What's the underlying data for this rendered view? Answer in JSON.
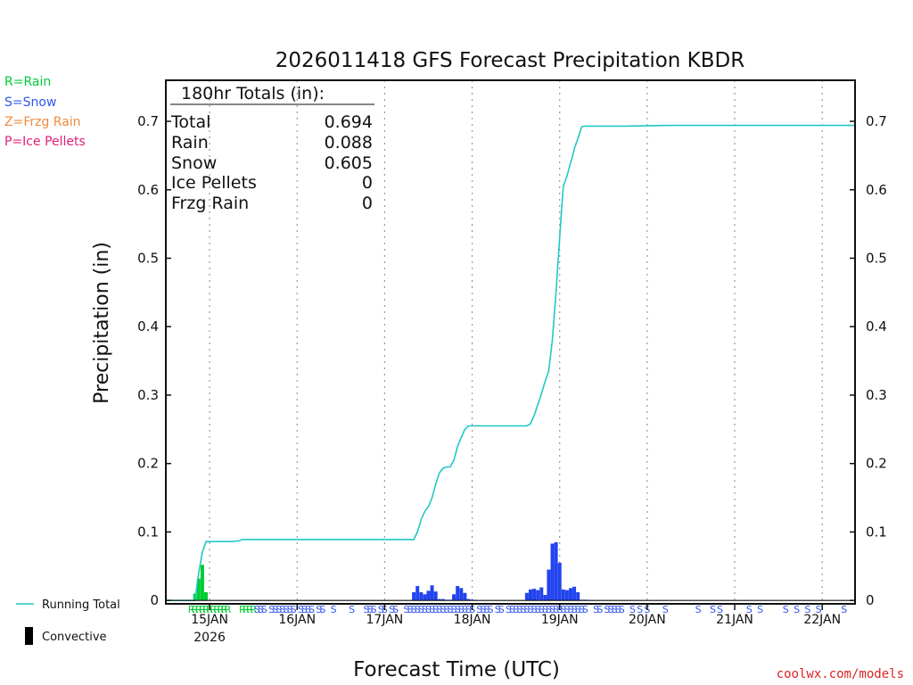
{
  "chart_data": {
    "type": "bar+line",
    "title": "2026011418 GFS Forecast Precipitation KBDR",
    "xlabel": "Forecast Time (UTC)",
    "ylabel": "Precipitation (in)",
    "ylim": [
      -0.005,
      0.76
    ],
    "xlim_hours": [
      -6,
      183
    ],
    "yticks": [
      0,
      0.1,
      0.2,
      0.3,
      0.4,
      0.5,
      0.6,
      0.7
    ],
    "ytick_labels": [
      "0",
      "0.1",
      "0.2",
      "0.3",
      "0.4",
      "0.5",
      "0.6",
      "0.7"
    ],
    "xticks": [
      {
        "hour": 6,
        "label": "15JAN",
        "sublabel": "2026"
      },
      {
        "hour": 30,
        "label": "16JAN"
      },
      {
        "hour": 54,
        "label": "17JAN"
      },
      {
        "hour": 78,
        "label": "18JAN"
      },
      {
        "hour": 102,
        "label": "19JAN"
      },
      {
        "hour": 126,
        "label": "20JAN"
      },
      {
        "hour": 150,
        "label": "21JAN"
      },
      {
        "hour": 174,
        "label": "22JAN"
      }
    ],
    "running_total": {
      "name": "Running Total",
      "color": "#20c8c8",
      "hours": [
        -6,
        0,
        2,
        3,
        4,
        5,
        12,
        14,
        15,
        16,
        17,
        18,
        62,
        63,
        64,
        65,
        66,
        67,
        67.5,
        68,
        69,
        70,
        71,
        72,
        73,
        74,
        75,
        76,
        77,
        78,
        79,
        93,
        94,
        95,
        96,
        97,
        98,
        99,
        100,
        101,
        102,
        102.5,
        103,
        104,
        105,
        105.5,
        106,
        107,
        108,
        109,
        110,
        120,
        132,
        140,
        170,
        183
      ],
      "values": [
        0,
        0,
        0,
        0.04,
        0.07,
        0.086,
        0.086,
        0.087,
        0.089,
        0.089,
        0.089,
        0.089,
        0.089,
        0.1,
        0.118,
        0.13,
        0.137,
        0.15,
        0.16,
        0.17,
        0.186,
        0.193,
        0.195,
        0.195,
        0.205,
        0.225,
        0.238,
        0.25,
        0.255,
        0.255,
        0.255,
        0.255,
        0.258,
        0.27,
        0.286,
        0.302,
        0.32,
        0.335,
        0.38,
        0.45,
        0.53,
        0.57,
        0.605,
        0.62,
        0.64,
        0.648,
        0.66,
        0.675,
        0.692,
        0.693,
        0.693,
        0.693,
        0.694,
        0.694,
        0.694,
        0.694
      ]
    },
    "rain_bars": {
      "name": "Rain",
      "color": "#00cc33",
      "hours": [
        2,
        3,
        4,
        5
      ],
      "values": [
        0.01,
        0.032,
        0.052,
        0.012
      ]
    },
    "snow_bars": {
      "name": "Snow",
      "color": "#2244ee",
      "hours": [
        62,
        63,
        64,
        65,
        66,
        67,
        68,
        69,
        70,
        71,
        72,
        73,
        74,
        75,
        76,
        77,
        78,
        79,
        93,
        94,
        95,
        96,
        97,
        98,
        99,
        100,
        101,
        102,
        103,
        104,
        105,
        106,
        107,
        108,
        109,
        110
      ],
      "values": [
        0.012,
        0.021,
        0.012,
        0.009,
        0.014,
        0.022,
        0.013,
        0.002,
        0.002,
        0.001,
        0.001,
        0.009,
        0.021,
        0.018,
        0.011,
        0.002,
        0.001,
        0.0005,
        0.011,
        0.016,
        0.017,
        0.015,
        0.019,
        0.008,
        0.045,
        0.083,
        0.085,
        0.055,
        0.016,
        0.015,
        0.018,
        0.02,
        0.012,
        0.001,
        0.001,
        0.0005
      ]
    },
    "ptype_markers": [
      {
        "hour": 1,
        "code": "R"
      },
      {
        "hour": 2,
        "code": "R"
      },
      {
        "hour": 3,
        "code": "R"
      },
      {
        "hour": 4,
        "code": "R"
      },
      {
        "hour": 5,
        "code": "R"
      },
      {
        "hour": 6,
        "code": "R"
      },
      {
        "hour": 7,
        "code": "R"
      },
      {
        "hour": 8,
        "code": "R"
      },
      {
        "hour": 9,
        "code": "R"
      },
      {
        "hour": 10,
        "code": "R"
      },
      {
        "hour": 11,
        "code": "R"
      },
      {
        "hour": 15,
        "code": "R"
      },
      {
        "hour": 16,
        "code": "R"
      },
      {
        "hour": 17,
        "code": "R"
      },
      {
        "hour": 18,
        "code": "R"
      },
      {
        "hour": 19,
        "code": "S"
      },
      {
        "hour": 20,
        "code": "S"
      },
      {
        "hour": 21,
        "code": "S"
      },
      {
        "hour": 23,
        "code": "S"
      },
      {
        "hour": 24,
        "code": "S"
      },
      {
        "hour": 25,
        "code": "S"
      },
      {
        "hour": 26,
        "code": "S"
      },
      {
        "hour": 27,
        "code": "S"
      },
      {
        "hour": 28,
        "code": "S"
      },
      {
        "hour": 29,
        "code": "S"
      },
      {
        "hour": 31,
        "code": "S"
      },
      {
        "hour": 32,
        "code": "S"
      },
      {
        "hour": 33,
        "code": "S"
      },
      {
        "hour": 34,
        "code": "S"
      },
      {
        "hour": 36,
        "code": "S"
      },
      {
        "hour": 37,
        "code": "S"
      },
      {
        "hour": 40,
        "code": "S"
      },
      {
        "hour": 45,
        "code": "S"
      },
      {
        "hour": 49,
        "code": "S"
      },
      {
        "hour": 50,
        "code": "S"
      },
      {
        "hour": 51,
        "code": "S"
      },
      {
        "hour": 53,
        "code": "S"
      },
      {
        "hour": 54,
        "code": "S"
      },
      {
        "hour": 56,
        "code": "S"
      },
      {
        "hour": 57,
        "code": "S"
      },
      {
        "hour": 60,
        "code": "S"
      },
      {
        "hour": 61,
        "code": "S"
      },
      {
        "hour": 62,
        "code": "S"
      },
      {
        "hour": 63,
        "code": "S"
      },
      {
        "hour": 64,
        "code": "S"
      },
      {
        "hour": 65,
        "code": "S"
      },
      {
        "hour": 66,
        "code": "S"
      },
      {
        "hour": 67,
        "code": "S"
      },
      {
        "hour": 68,
        "code": "S"
      },
      {
        "hour": 69,
        "code": "S"
      },
      {
        "hour": 70,
        "code": "S"
      },
      {
        "hour": 71,
        "code": "S"
      },
      {
        "hour": 72,
        "code": "S"
      },
      {
        "hour": 73,
        "code": "S"
      },
      {
        "hour": 74,
        "code": "S"
      },
      {
        "hour": 75,
        "code": "S"
      },
      {
        "hour": 76,
        "code": "S"
      },
      {
        "hour": 77,
        "code": "S"
      },
      {
        "hour": 78,
        "code": "S"
      },
      {
        "hour": 80,
        "code": "S"
      },
      {
        "hour": 81,
        "code": "S"
      },
      {
        "hour": 82,
        "code": "S"
      },
      {
        "hour": 83,
        "code": "S"
      },
      {
        "hour": 85,
        "code": "S"
      },
      {
        "hour": 86,
        "code": "S"
      },
      {
        "hour": 88,
        "code": "S"
      },
      {
        "hour": 89,
        "code": "S"
      },
      {
        "hour": 90,
        "code": "S"
      },
      {
        "hour": 91,
        "code": "S"
      },
      {
        "hour": 92,
        "code": "S"
      },
      {
        "hour": 93,
        "code": "S"
      },
      {
        "hour": 94,
        "code": "S"
      },
      {
        "hour": 95,
        "code": "S"
      },
      {
        "hour": 96,
        "code": "S"
      },
      {
        "hour": 97,
        "code": "S"
      },
      {
        "hour": 98,
        "code": "S"
      },
      {
        "hour": 99,
        "code": "S"
      },
      {
        "hour": 100,
        "code": "S"
      },
      {
        "hour": 101,
        "code": "S"
      },
      {
        "hour": 102,
        "code": "S"
      },
      {
        "hour": 103,
        "code": "S"
      },
      {
        "hour": 104,
        "code": "S"
      },
      {
        "hour": 105,
        "code": "S"
      },
      {
        "hour": 106,
        "code": "S"
      },
      {
        "hour": 107,
        "code": "S"
      },
      {
        "hour": 108,
        "code": "S"
      },
      {
        "hour": 109,
        "code": "S"
      },
      {
        "hour": 112,
        "code": "S"
      },
      {
        "hour": 113,
        "code": "S"
      },
      {
        "hour": 115,
        "code": "S"
      },
      {
        "hour": 116,
        "code": "S"
      },
      {
        "hour": 117,
        "code": "S"
      },
      {
        "hour": 118,
        "code": "S"
      },
      {
        "hour": 119,
        "code": "S"
      },
      {
        "hour": 122,
        "code": "S"
      },
      {
        "hour": 124,
        "code": "S"
      },
      {
        "hour": 126,
        "code": "S"
      },
      {
        "hour": 131,
        "code": "S"
      },
      {
        "hour": 140,
        "code": "S"
      },
      {
        "hour": 144,
        "code": "S"
      },
      {
        "hour": 146,
        "code": "S"
      },
      {
        "hour": 154,
        "code": "S"
      },
      {
        "hour": 157,
        "code": "S"
      },
      {
        "hour": 164,
        "code": "S"
      },
      {
        "hour": 167,
        "code": "S"
      },
      {
        "hour": 170,
        "code": "S"
      },
      {
        "hour": 173,
        "code": "S"
      },
      {
        "hour": 180,
        "code": "S"
      }
    ]
  },
  "totals_box": {
    "heading": "180hr Totals (in):",
    "rows": [
      {
        "label": "Total",
        "value": "0.694"
      },
      {
        "label": "Rain",
        "value": "0.088"
      },
      {
        "label": "Snow",
        "value": "0.605"
      },
      {
        "label": "Ice Pellets",
        "value": "0"
      },
      {
        "label": "Frzg Rain",
        "value": "0"
      }
    ]
  },
  "ptype_legend": [
    {
      "text": "R=Rain",
      "color": "#00cc33"
    },
    {
      "text": "S=Snow",
      "color": "#3355ee"
    },
    {
      "text": "Z=Frzg Rain",
      "color": "#f08a3c"
    },
    {
      "text": "P=Ice Pellets",
      "color": "#e0207a"
    }
  ],
  "series_legend": {
    "running_total_label": "Running Total",
    "convective_label": "Convective",
    "running_total_color": "#20c8c8",
    "convective_color": "#000000"
  },
  "ptype_colors": {
    "R": "#00cc33",
    "S": "#3355ee",
    "Z": "#f08a3c",
    "P": "#e0207a"
  },
  "credit": {
    "text": "coolwx.com/models",
    "color": "#dd2222"
  }
}
